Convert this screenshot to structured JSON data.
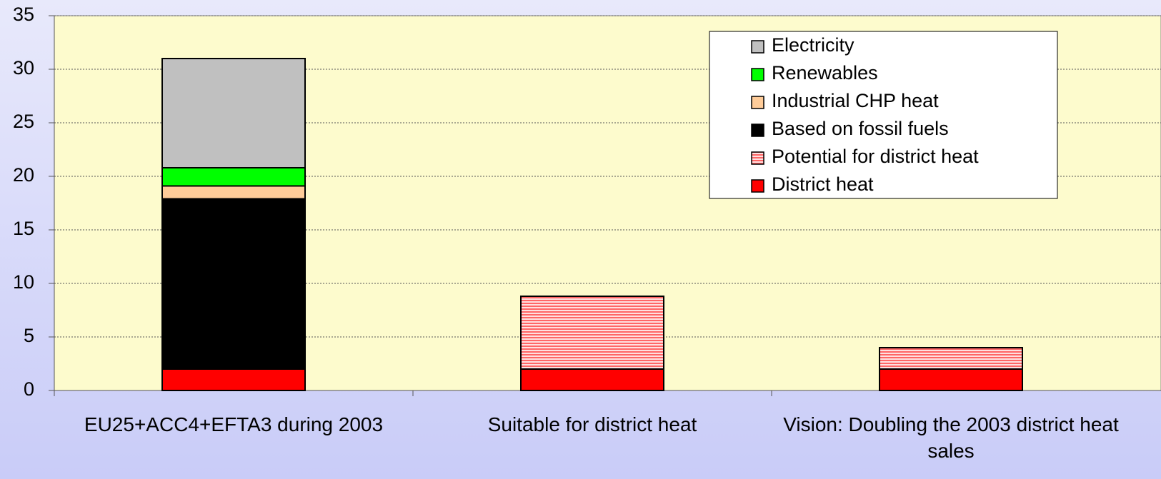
{
  "chart_data": {
    "type": "stacked-bar",
    "categories": [
      "EU25+ACC4+EFTA3 during 2003",
      "Suitable for district heat",
      "Vision: Doubling the 2003 district heat sales"
    ],
    "series": [
      {
        "name": "District heat",
        "color": "#ff0000",
        "values": [
          2.0,
          2.0,
          2.0
        ]
      },
      {
        "name": "Potential for district heat",
        "color": "#ff6666",
        "pattern": "horizontal-lines",
        "values": [
          null,
          6.8,
          2.0
        ]
      },
      {
        "name": "Based on fossil fuels",
        "color": "#000000",
        "values": [
          15.9,
          null,
          null
        ]
      },
      {
        "name": "Industrial CHP heat",
        "color": "#ffcc99",
        "values": [
          1.2,
          null,
          null
        ]
      },
      {
        "name": "Renewables",
        "color": "#00ff00",
        "values": [
          1.7,
          null,
          null
        ]
      },
      {
        "name": "Electricity",
        "color": "#c0c0c0",
        "values": [
          10.2,
          null,
          null
        ]
      }
    ],
    "ylim": [
      0,
      35
    ],
    "yticks": [
      0,
      5,
      10,
      15,
      20,
      25,
      30,
      35
    ],
    "grid": true,
    "legend": "upper right"
  }
}
